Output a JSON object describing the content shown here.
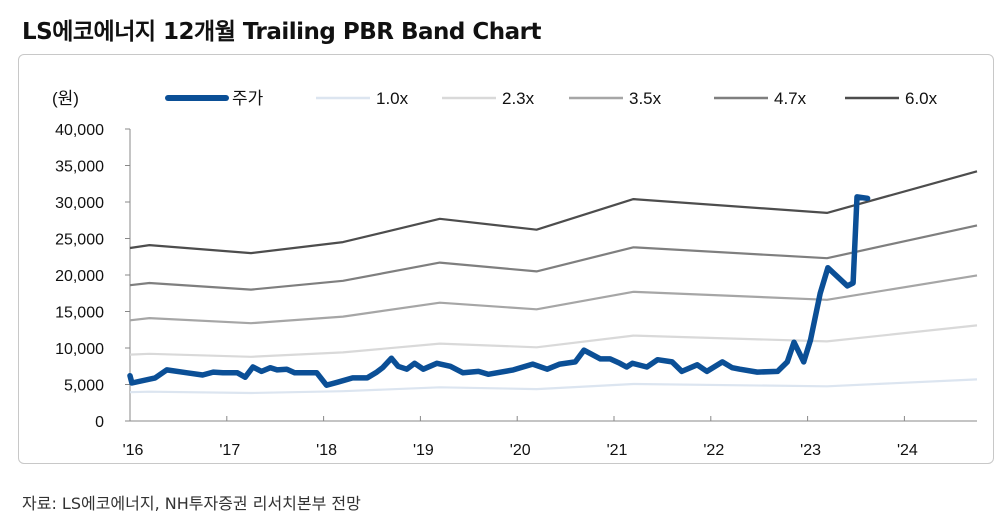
{
  "title": "LS에코에너지 12개월 Trailing PBR Band Chart",
  "source": "자료: LS에코에너지, NH투자증권 리서치본부 전망",
  "chart_data": {
    "type": "line",
    "title": "LS에코에너지 12개월 Trailing PBR Band Chart",
    "unit_label": "(원)",
    "xlabel": "",
    "ylabel": "",
    "xlim": [
      2016,
      2024.75
    ],
    "ylim": [
      0,
      40000
    ],
    "y_ticks": [
      0,
      5000,
      10000,
      15000,
      20000,
      25000,
      30000,
      35000,
      40000
    ],
    "y_tick_labels": [
      "0",
      "5,000",
      "10,000",
      "15,000",
      "20,000",
      "25,000",
      "30,000",
      "35,000",
      "40,000"
    ],
    "x_ticks": [
      2016,
      2017,
      2018,
      2019,
      2020,
      2021,
      2022,
      2023,
      2024
    ],
    "x_tick_labels": [
      "'16",
      "'17",
      "'18",
      "'19",
      "'20",
      "'21",
      "'22",
      "'23",
      "'24"
    ],
    "grid": false,
    "legend_position": "top",
    "band_x": [
      2016.0,
      2016.2,
      2017.25,
      2018.2,
      2019.2,
      2020.2,
      2021.2,
      2023.2,
      2024.75
    ],
    "series": [
      {
        "name": "주가",
        "color": "#0b4f96",
        "x": [
          2016.0,
          2016.02,
          2016.26,
          2016.38,
          2016.59,
          2016.75,
          2016.86,
          2016.96,
          2017.11,
          2017.19,
          2017.27,
          2017.36,
          2017.45,
          2017.52,
          2017.62,
          2017.7,
          2017.93,
          2018.03,
          2018.14,
          2018.3,
          2018.45,
          2018.55,
          2018.61,
          2018.7,
          2018.77,
          2018.86,
          2018.94,
          2019.03,
          2019.17,
          2019.31,
          2019.44,
          2019.6,
          2019.7,
          2019.96,
          2020.16,
          2020.31,
          2020.44,
          2020.6,
          2020.69,
          2020.86,
          2020.96,
          2021.06,
          2021.13,
          2021.19,
          2021.34,
          2021.45,
          2021.6,
          2021.7,
          2021.86,
          2021.96,
          2022.12,
          2022.22,
          2022.3,
          2022.48,
          2022.69,
          2022.79,
          2022.86,
          2022.96,
          2023.03,
          2023.13,
          2023.21,
          2023.41,
          2023.47,
          2023.51,
          2023.62
        ],
        "values": [
          6200,
          5200,
          5900,
          7000,
          6600,
          6300,
          6700,
          6600,
          6600,
          6000,
          7400,
          6800,
          7300,
          7000,
          7100,
          6600,
          6600,
          4900,
          5300,
          5900,
          5900,
          6700,
          7300,
          8600,
          7500,
          7100,
          7900,
          7100,
          7900,
          7500,
          6600,
          6800,
          6400,
          7000,
          7800,
          7100,
          7800,
          8100,
          9700,
          8500,
          8500,
          7900,
          7400,
          7900,
          7400,
          8400,
          8100,
          6800,
          7700,
          6800,
          8100,
          7300,
          7100,
          6700,
          6800,
          8100,
          10800,
          8100,
          11100,
          17500,
          21000,
          18500,
          18900,
          30700,
          30500
        ]
      },
      {
        "name": "1.0x",
        "color": "#dce5f0",
        "values": [
          3950,
          4020,
          3830,
          4080,
          4620,
          4370,
          5070,
          4750,
          5700
        ]
      },
      {
        "name": "2.3x",
        "color": "#d9d9d9",
        "values": [
          9100,
          9200,
          8800,
          9400,
          10600,
          10100,
          11700,
          10900,
          13100
        ]
      },
      {
        "name": "3.5x",
        "color": "#a6a6a6",
        "values": [
          13800,
          14100,
          13400,
          14300,
          16200,
          15300,
          17700,
          16600,
          19950
        ]
      },
      {
        "name": "4.7x",
        "color": "#7f7f7f",
        "values": [
          18600,
          18900,
          18000,
          19200,
          21700,
          20500,
          23800,
          22300,
          26800
        ]
      },
      {
        "name": "6.0x",
        "color": "#4d4d4d",
        "values": [
          23700,
          24100,
          23000,
          24500,
          27700,
          26200,
          30400,
          28500,
          34200
        ]
      }
    ]
  }
}
